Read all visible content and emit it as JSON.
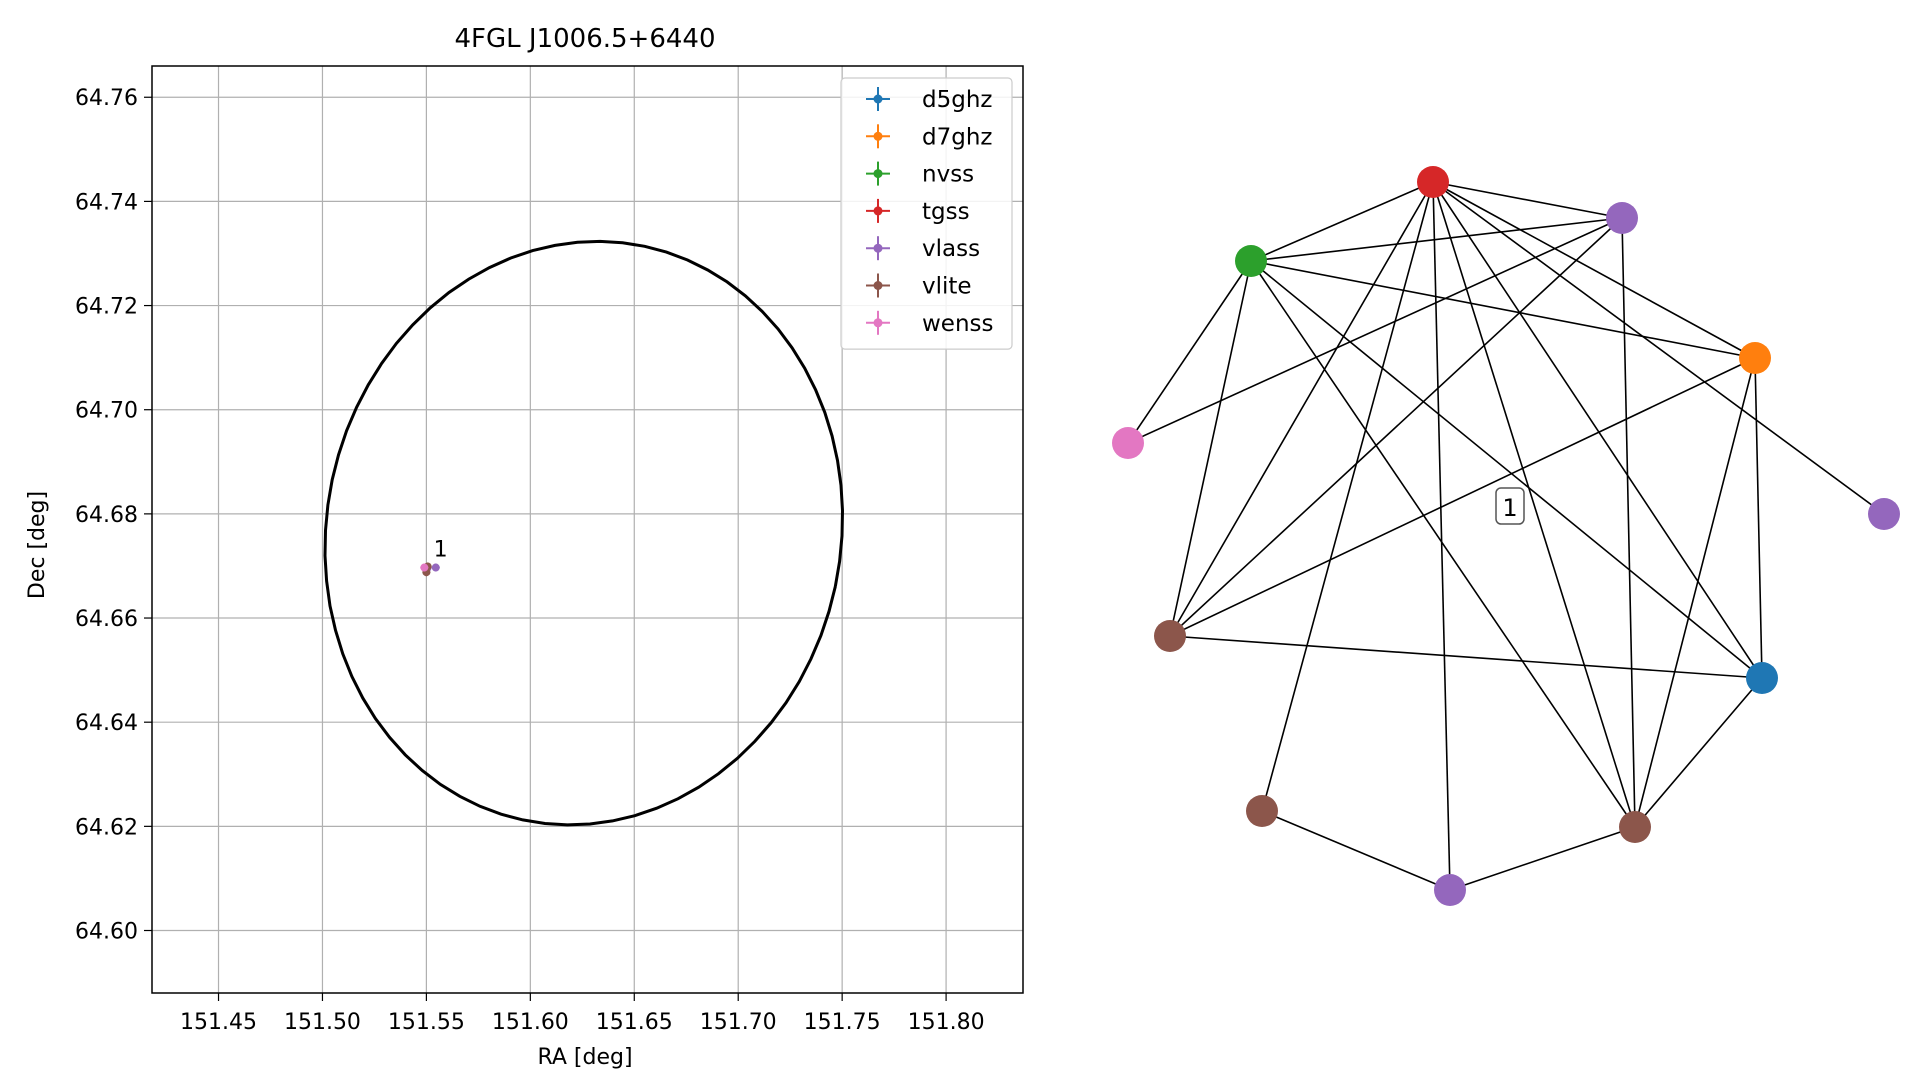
{
  "chart_data": [
    {
      "type": "scatter",
      "title": "4FGL J1006.5+6440",
      "xlabel": "RA [deg]",
      "ylabel": "Dec [deg]",
      "xlim": [
        151.418,
        151.837
      ],
      "ylim": [
        64.588,
        64.766
      ],
      "xticks": [
        151.45,
        151.5,
        151.55,
        151.6,
        151.65,
        151.7,
        151.75,
        151.8
      ],
      "xtick_labels": [
        "151.45",
        "151.50",
        "151.55",
        "151.60",
        "151.65",
        "151.70",
        "151.75",
        "151.80"
      ],
      "yticks": [
        64.6,
        64.62,
        64.64,
        64.66,
        64.68,
        64.7,
        64.72,
        64.74,
        64.76
      ],
      "ytick_labels": [
        "64.60",
        "64.62",
        "64.64",
        "64.66",
        "64.68",
        "64.70",
        "64.72",
        "64.74",
        "64.76"
      ],
      "grid": true,
      "legend_position": "top-right",
      "series": [
        {
          "name": "d5ghz",
          "color": "#1f77b4",
          "points": [
            [
              151.5502,
              64.6695
            ]
          ]
        },
        {
          "name": "d7ghz",
          "color": "#ff7f0e",
          "points": [
            [
              151.5503,
              64.6698
            ]
          ]
        },
        {
          "name": "nvss",
          "color": "#2ca02c",
          "points": [
            [
              151.5499,
              64.6697
            ]
          ]
        },
        {
          "name": "tgss",
          "color": "#d62728",
          "points": [
            [
              151.55,
              64.6694
            ]
          ]
        },
        {
          "name": "vlass",
          "color": "#9467bd",
          "points": [
            [
              151.5545,
              64.6697
            ],
            [
              151.5505,
              64.6696
            ]
          ]
        },
        {
          "name": "vlite",
          "color": "#8c564b",
          "points": [
            [
              151.55,
              64.6688
            ],
            [
              151.5506,
              64.6699
            ]
          ]
        },
        {
          "name": "wenss",
          "color": "#e377c2",
          "points": [
            [
              151.549,
              64.6697
            ]
          ]
        }
      ],
      "ellipse": {
        "center": [
          151.6257,
          64.6763
        ],
        "semi_axis_ra": 0.1237,
        "semi_axis_dec": 0.0563,
        "theta_deg": -12
      },
      "annotations": [
        {
          "text": "1",
          "x": 151.5525,
          "y": 64.671
        }
      ]
    },
    {
      "type": "network",
      "center_label": "1",
      "nodes": [
        {
          "id": "tgss_1",
          "color": "#d62728"
        },
        {
          "id": "vlass_top",
          "color": "#9467bd"
        },
        {
          "id": "nvss_1",
          "color": "#2ca02c"
        },
        {
          "id": "d7ghz_1",
          "color": "#ff7f0e"
        },
        {
          "id": "wenss_1",
          "color": "#e377c2"
        },
        {
          "id": "vlass_right",
          "color": "#9467bd"
        },
        {
          "id": "vlite_left",
          "color": "#8c564b"
        },
        {
          "id": "d5ghz_1",
          "color": "#1f77b4"
        },
        {
          "id": "vlite_bottomleft",
          "color": "#8c564b"
        },
        {
          "id": "vlite_bottomright",
          "color": "#8c564b"
        },
        {
          "id": "vlass_bottom",
          "color": "#9467bd"
        }
      ],
      "edges": [
        [
          "tgss_1",
          "vlass_top"
        ],
        [
          "tgss_1",
          "nvss_1"
        ],
        [
          "tgss_1",
          "d7ghz_1"
        ],
        [
          "tgss_1",
          "vlass_right"
        ],
        [
          "tgss_1",
          "vlite_left"
        ],
        [
          "tgss_1",
          "d5ghz_1"
        ],
        [
          "tgss_1",
          "vlite_bottomleft"
        ],
        [
          "tgss_1",
          "vlite_bottomright"
        ],
        [
          "tgss_1",
          "vlass_bottom"
        ],
        [
          "nvss_1",
          "vlass_top"
        ],
        [
          "nvss_1",
          "d7ghz_1"
        ],
        [
          "nvss_1",
          "wenss_1"
        ],
        [
          "nvss_1",
          "vlite_left"
        ],
        [
          "nvss_1",
          "d5ghz_1"
        ],
        [
          "nvss_1",
          "vlite_bottomright"
        ],
        [
          "vlass_top",
          "wenss_1"
        ],
        [
          "vlass_top",
          "vlite_left"
        ],
        [
          "vlass_top",
          "vlite_bottomright"
        ],
        [
          "d7ghz_1",
          "vlite_left"
        ],
        [
          "d7ghz_1",
          "d5ghz_1"
        ],
        [
          "d7ghz_1",
          "vlite_bottomright"
        ],
        [
          "vlite_left",
          "d5ghz_1"
        ],
        [
          "d5ghz_1",
          "vlite_bottomright"
        ],
        [
          "vlite_bottomleft",
          "vlass_bottom"
        ],
        [
          "vlass_bottom",
          "vlite_bottomright"
        ]
      ]
    }
  ]
}
